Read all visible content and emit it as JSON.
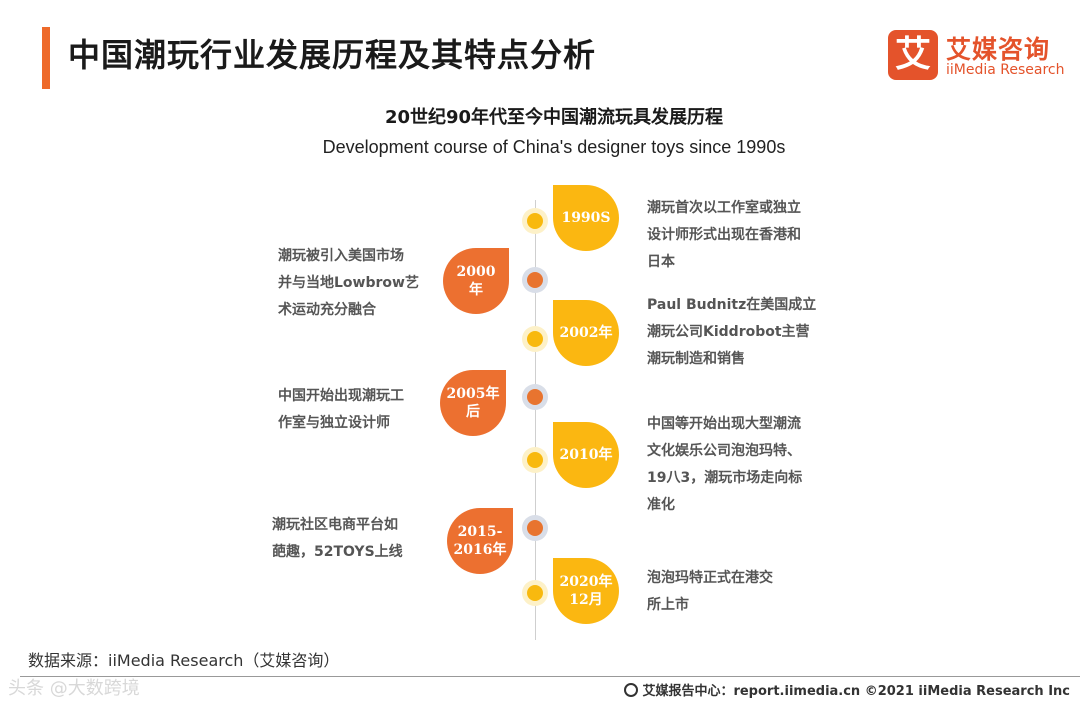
{
  "header": {
    "title": "中国潮玩行业发展历程及其特点分析",
    "logo_mark": "艾",
    "logo_cn": "艾媒咨询",
    "logo_en": "iiMedia Research"
  },
  "subtitle_cn": "20世纪90年代至今中国潮流玩具发展历程",
  "subtitle_en": "Development course of China's designer toys since 1990s",
  "timeline": [
    {
      "label_lines": [
        "1990S"
      ],
      "side": "right",
      "description_lines": [
        "潮玩首次以工作室或独立",
        "设计师形式出现在香港和",
        "日本"
      ]
    },
    {
      "label_lines": [
        "2000",
        "年"
      ],
      "side": "left",
      "description_lines": [
        "潮玩被引入美国市场",
        "并与当地Lowbrow艺",
        "术运动充分融合"
      ]
    },
    {
      "label_lines": [
        "2002年"
      ],
      "side": "right",
      "description_lines": [
        "Paul Budnitz在美国成立",
        "潮玩公司Kiddrobot主营",
        "潮玩制造和销售"
      ]
    },
    {
      "label_lines": [
        "2005年",
        "后"
      ],
      "side": "left",
      "description_lines": [
        "中国开始出现潮玩工",
        "作室与独立设计师"
      ]
    },
    {
      "label_lines": [
        "2010年"
      ],
      "side": "right",
      "description_lines": [
        "中国等开始出现大型潮流",
        "文化娱乐公司泡泡玛特、",
        "19八3，潮玩市场走向标",
        "准化"
      ]
    },
    {
      "label_lines": [
        "2015-",
        "2016年"
      ],
      "side": "left",
      "description_lines": [
        "潮玩社区电商平台如",
        "葩趣，52TOYS上线"
      ]
    },
    {
      "label_lines": [
        "2020年",
        "12月"
      ],
      "side": "right",
      "description_lines": [
        "泡泡玛特正式在港交",
        "所上市"
      ]
    }
  ],
  "source": "数据来源：iiMedia Research（艾媒咨询）",
  "watermark": "头条 @大数跨境",
  "footer": "艾媒报告中心：report.iimedia.cn  ©2021  iiMedia Research  Inc",
  "colors": {
    "accent": "#ee6a2a",
    "yellow": "#fbb711",
    "orange": "#ec7030",
    "brand": "#e4532b"
  }
}
